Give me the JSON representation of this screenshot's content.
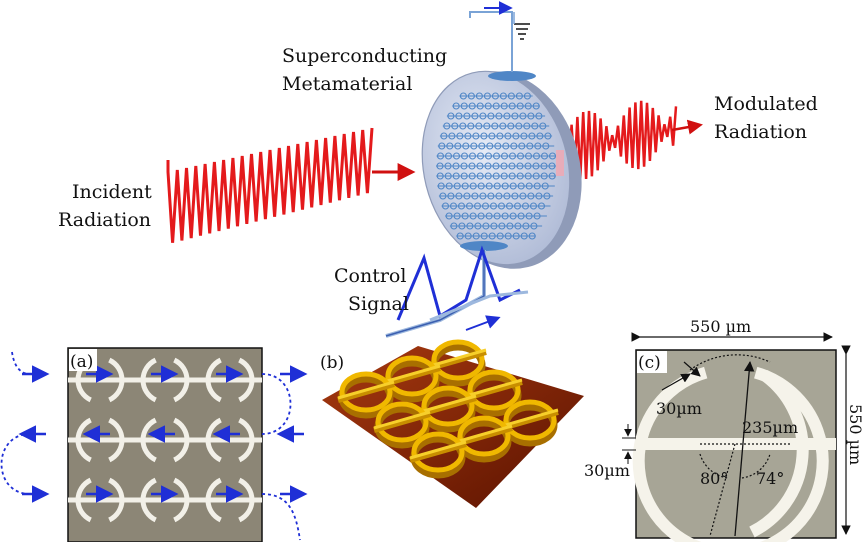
{
  "labels": {
    "metamaterial_line1": "Superconducting",
    "metamaterial_line2": "Metamaterial",
    "incident_line1": "Incident",
    "incident_line2": "Radiation",
    "modulated_line1": "Modulated",
    "modulated_line2": "Radiation",
    "control_line1": "Control",
    "control_line2": "Signal"
  },
  "panel_a": {
    "label": "(a)"
  },
  "panel_b": {
    "label": "(b)"
  },
  "panel_c": {
    "label": "(c)",
    "width_label": "550 µm",
    "height_label": "550 µm",
    "gap_label": "30µm",
    "line_label": "30µm",
    "radius_label": "235µm",
    "angle_left": "80°",
    "angle_right": "74°"
  },
  "colors": {
    "radiation": "#e41a1c",
    "arrow_blue": "#1f2fd6",
    "ring_blue": "#4f86c6",
    "disk": "#c9d3e8",
    "substrate_a": "#8c8676",
    "substrate_b": "#7a1b05",
    "gold": "#f0b800"
  }
}
